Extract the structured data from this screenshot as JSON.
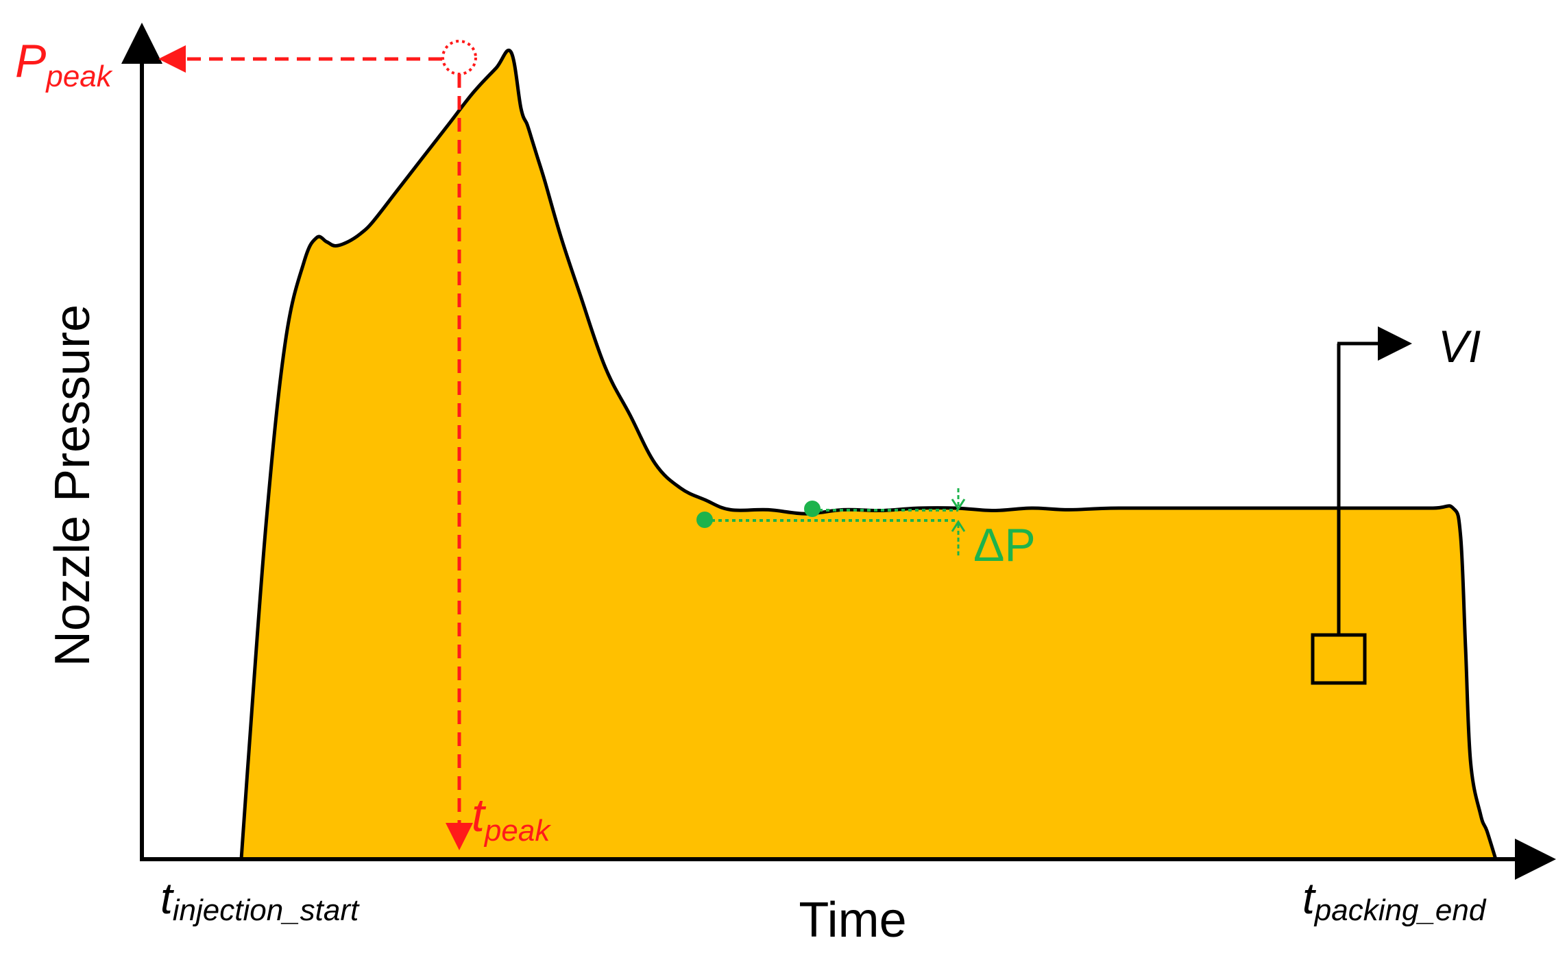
{
  "chart_data": {
    "type": "area",
    "title": "",
    "xlabel": "Time",
    "ylabel": "Nozzle Pressure",
    "xlim": [
      0,
      100
    ],
    "ylim": [
      0,
      100
    ],
    "grid": false,
    "ticks_shown": false,
    "series": [
      {
        "fill": "#FFC000",
        "line": "#000000",
        "x": [
          0,
          0.5,
          2,
          3.5,
          5,
          6,
          6.8,
          7.5,
          8.5,
          9.5,
          10.5,
          12.5,
          14.5,
          16.5,
          18.5,
          20.3,
          21.5,
          22.3,
          22.8,
          23.2,
          23.6,
          24.2,
          25.5,
          27,
          29,
          31,
          33,
          35,
          37,
          39,
          42,
          45,
          48,
          51,
          54,
          57,
          60,
          63,
          66,
          70,
          80,
          90,
          95,
          96.6,
          97.2,
          97.6,
          98,
          98.8,
          99.3,
          100
        ],
        "y": [
          0,
          11,
          42,
          64,
          74,
          77,
          76.5,
          76,
          76.5,
          77.5,
          79,
          83,
          87,
          91,
          95,
          98,
          100,
          93,
          91,
          89,
          87,
          84,
          77,
          70,
          61,
          55,
          49,
          46,
          44.5,
          43.3,
          43.3,
          42.8,
          43.3,
          43.2,
          43.5,
          43.5,
          43.2,
          43.5,
          43.3,
          43.5,
          43.5,
          43.5,
          43.5,
          43.5,
          40,
          26,
          12,
          5.5,
          3.5,
          0
        ]
      }
    ]
  },
  "labels": {
    "p_peak": {
      "main": "P",
      "sub": "peak"
    },
    "t_peak": {
      "main": "t",
      "sub": "peak"
    },
    "t_injection_start": {
      "main": "t",
      "sub": "injection_start"
    },
    "t_packing_end": {
      "main": "t",
      "sub": "packing_end"
    },
    "delta_p": "ΔP",
    "vi": "VI"
  },
  "colors": {
    "fill": "#FFC000",
    "curve": "#000000",
    "peak_annotation": "#FF1A1A",
    "delta_annotation": "#1DB34C",
    "axis": "#000000"
  }
}
